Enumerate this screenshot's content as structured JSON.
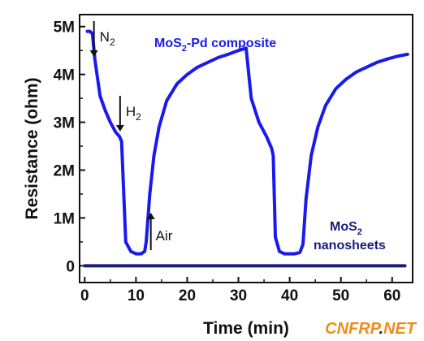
{
  "chart_data": {
    "type": "line",
    "xlabel": "Time (min)",
    "ylabel": "Resistance (ohm)",
    "xlim": [
      -1,
      64
    ],
    "ylim": [
      -0.35,
      5.25
    ],
    "x_ticks": [
      0,
      10,
      20,
      30,
      40,
      50,
      60
    ],
    "x_tick_labels": [
      "0",
      "10",
      "20",
      "30",
      "40",
      "50",
      "60"
    ],
    "y_ticks": [
      0,
      1,
      2,
      3,
      4,
      5
    ],
    "y_tick_labels": [
      "0",
      "1M",
      "2M",
      "3M",
      "4M",
      "5M"
    ],
    "y_unit": "M ohm",
    "series": [
      {
        "name": "MoS2-Pd composite",
        "color": "#1a1aee",
        "x": [
          0.5,
          1,
          1.5,
          2,
          3,
          4,
          5,
          6,
          6.8,
          7.2,
          8,
          9,
          10,
          11,
          11.7,
          12,
          12.7,
          13.5,
          14.5,
          16,
          18,
          20,
          22,
          24,
          26,
          28,
          30,
          31.5,
          32.5,
          34,
          35.5,
          36.5,
          36.8,
          37.2,
          38,
          39,
          40,
          41,
          42,
          42.6,
          43.2,
          44.2,
          45.5,
          47,
          49,
          51,
          53,
          55,
          57,
          59,
          61,
          63
        ],
        "y": [
          4.9,
          4.9,
          4.85,
          4.3,
          3.55,
          3.25,
          3.0,
          2.8,
          2.7,
          2.6,
          0.5,
          0.3,
          0.25,
          0.25,
          0.3,
          0.5,
          1.5,
          2.3,
          2.9,
          3.45,
          3.8,
          4.0,
          4.15,
          4.25,
          4.35,
          4.42,
          4.5,
          4.55,
          3.5,
          3.0,
          2.7,
          2.45,
          2.3,
          0.6,
          0.3,
          0.25,
          0.25,
          0.25,
          0.28,
          0.45,
          1.4,
          2.3,
          2.9,
          3.35,
          3.7,
          3.9,
          4.05,
          4.15,
          4.25,
          4.32,
          4.38,
          4.42
        ]
      },
      {
        "name": "MoS2 nanosheets",
        "color": "#1b1b7a",
        "x": [
          0,
          62.5
        ],
        "y": [
          0,
          0
        ]
      }
    ],
    "annotations": [
      {
        "text": "N",
        "sub": "2",
        "x": 1.8
      },
      {
        "text": "H",
        "sub": "2",
        "x": 6.9
      },
      {
        "text": "Air",
        "x": 12.9
      }
    ],
    "legend_labels": {
      "composite_main": "MoS",
      "composite_sub": "2",
      "composite_rest": "-Pd composite",
      "nanosheets_main": "MoS",
      "nanosheets_sub": "2",
      "nanosheets_second": "nanosheets"
    }
  },
  "watermark": {
    "left": "CNFRP",
    "dot": ".",
    "right": "NET",
    "color_main": "#f08c1a",
    "color_dot": "#222222"
  }
}
